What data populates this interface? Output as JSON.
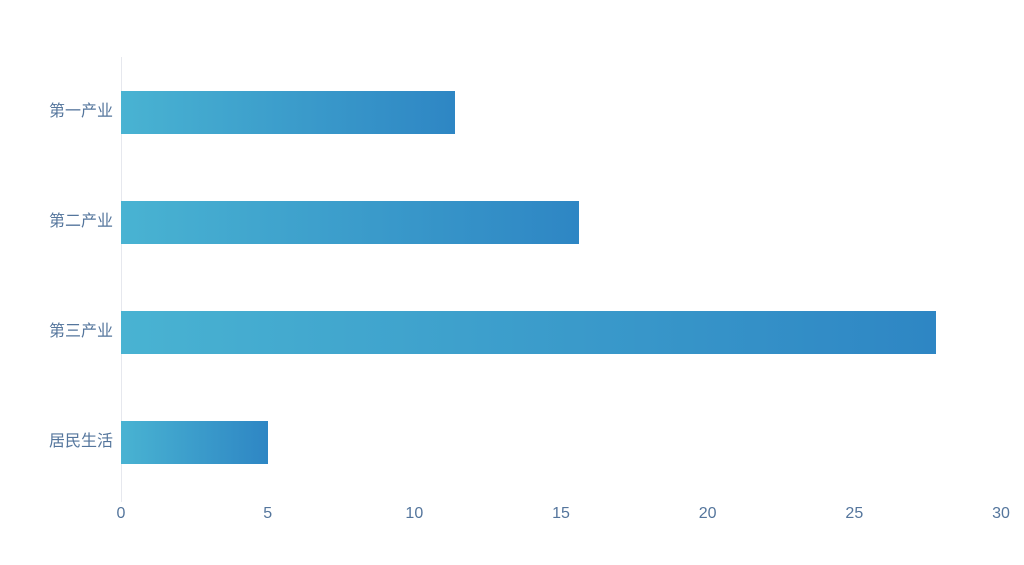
{
  "chart_data": {
    "type": "bar",
    "orientation": "horizontal",
    "title": "",
    "xlabel": "",
    "ylabel": "",
    "categories": [
      "第一产业",
      "第二产业",
      "第三产业",
      "居民生活"
    ],
    "values": [
      11.4,
      15.6,
      27.8,
      5.0
    ],
    "xlim": [
      0,
      30
    ],
    "x_ticks": [
      0,
      5,
      10,
      15,
      20,
      25,
      30
    ],
    "grid": false,
    "legend": false,
    "colors": {
      "bar_gradient_start": "#49B3D2",
      "bar_gradient_end": "#2E86C4",
      "axis_label": "#54759C",
      "axis_line": "#E6E8EE",
      "background": "#FFFFFF"
    }
  }
}
